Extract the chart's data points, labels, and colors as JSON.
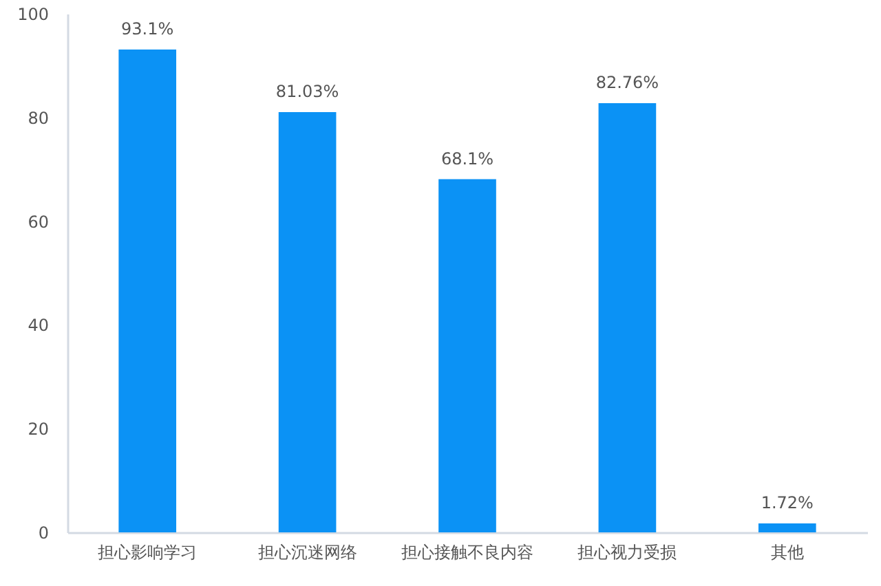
{
  "chart_data": {
    "type": "bar",
    "categories": [
      "担心影响学习",
      "担心沉迷网络",
      "担心接触不良内容",
      "担心视力受损",
      "其他"
    ],
    "values": [
      93.1,
      81.03,
      68.1,
      82.76,
      1.72
    ],
    "value_labels": [
      "93.1%",
      "81.03%",
      "68.1%",
      "82.76%",
      "1.72%"
    ],
    "color": "#0b92f5",
    "ylim": [
      0,
      100
    ],
    "yticks": [
      0,
      20,
      40,
      60,
      80,
      100
    ],
    "grid": false,
    "legend": false
  }
}
